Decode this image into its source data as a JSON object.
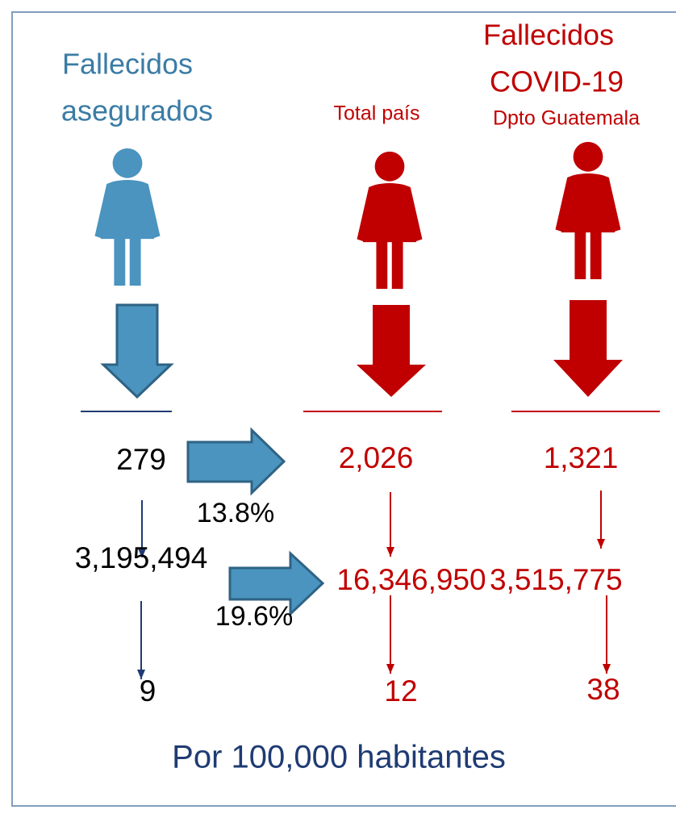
{
  "insured": {
    "title_lines": [
      "Fallecidos",
      "asegurados"
    ],
    "deaths": "279",
    "population": "3,195,494",
    "rate": "9"
  },
  "covid": {
    "title_lines": [
      "Fallecidos",
      "COVID-19"
    ],
    "country": {
      "label": "Total país",
      "deaths": "2,026",
      "population": "16,346,950",
      "rate": "12"
    },
    "department": {
      "label": "Dpto Guatemala",
      "deaths": "1,321",
      "population": "3,515,775",
      "rate": "38"
    }
  },
  "ratios": {
    "deaths": "13.8%",
    "population": "19.6%"
  },
  "footer": "Por 100,000 habitantes"
}
